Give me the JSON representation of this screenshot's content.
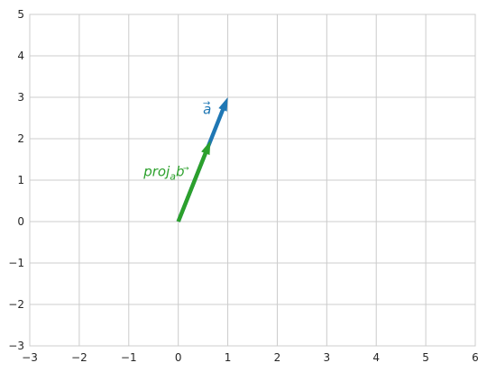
{
  "chart_data": {
    "type": "vector",
    "xlim": [
      -3,
      6
    ],
    "ylim": [
      -3,
      5
    ],
    "x_ticks": [
      -3,
      -2,
      -1,
      0,
      1,
      2,
      3,
      4,
      5,
      6
    ],
    "y_ticks": [
      -3,
      -2,
      -1,
      0,
      1,
      2,
      3,
      4,
      5
    ],
    "x_tick_labels": [
      "−3",
      "−2",
      "−1",
      "0",
      "1",
      "2",
      "3",
      "4",
      "5",
      "6"
    ],
    "y_tick_labels": [
      "−3",
      "−2",
      "−1",
      "0",
      "1",
      "2",
      "3",
      "4",
      "5"
    ],
    "grid": true,
    "vectors": [
      {
        "label": "a",
        "origin": [
          0,
          0
        ],
        "end": [
          1,
          3
        ],
        "color": "#1f77b4"
      },
      {
        "label": "proj_a b",
        "origin": [
          0,
          0
        ],
        "end": [
          0.65,
          1.95
        ],
        "color": "#2ca02c"
      }
    ],
    "labels": [
      {
        "text": "a",
        "arrow": "→",
        "at": [
          0.5,
          2.6
        ],
        "color": "#1f77b4"
      },
      {
        "text": "proj",
        "subscript": "a",
        "sub_arrow": "→",
        "suffix": "b",
        "at": [
          -0.7,
          1.1
        ],
        "color": "#2ca02c"
      }
    ]
  }
}
